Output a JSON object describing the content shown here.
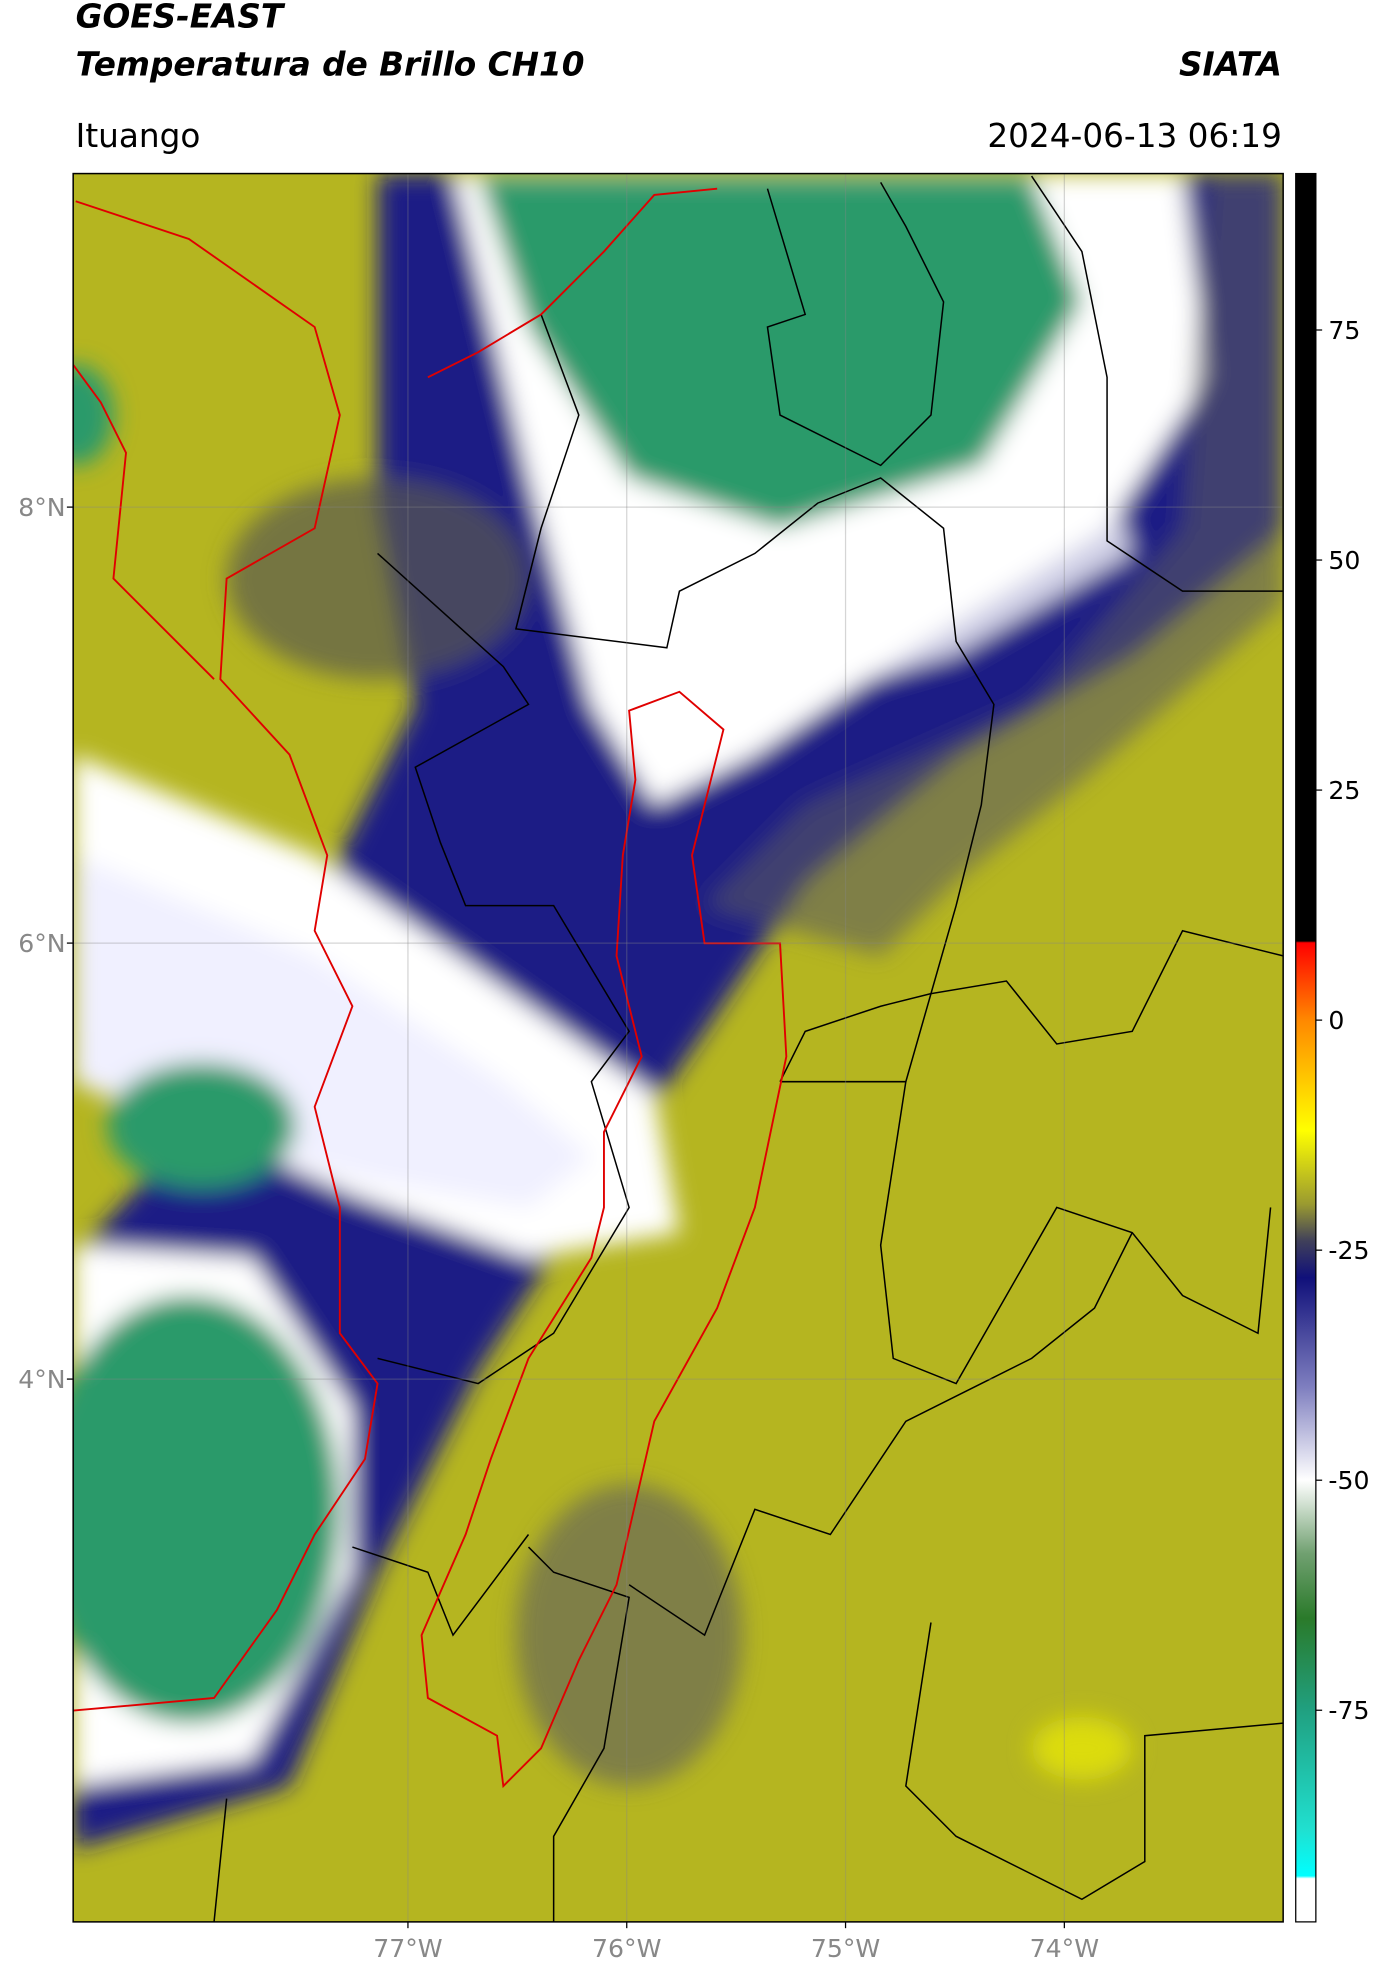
{
  "header": {
    "title": "GOES-EAST",
    "subtitle": "Temperatura de Brillo CH10",
    "source": "SIATA",
    "location": "Ituango",
    "datetime": "2024-06-13 06:19"
  },
  "map": {
    "lonlim": [
      -78.53,
      -73.0
    ],
    "latlim": [
      1.51,
      9.53
    ],
    "xticks": [
      {
        "value": -77,
        "label": "77°W"
      },
      {
        "value": -76,
        "label": "76°W"
      },
      {
        "value": -75,
        "label": "75°W"
      },
      {
        "value": -74,
        "label": "74°W"
      }
    ],
    "yticks": [
      {
        "value": 8,
        "label": "8°N"
      },
      {
        "value": 6,
        "label": "6°N"
      },
      {
        "value": 4,
        "label": "4°N"
      }
    ],
    "grid": true
  },
  "colorbar": {
    "clim": [
      -98,
      92
    ],
    "ticks": [
      75,
      50,
      25,
      0,
      -25,
      -50,
      -75
    ],
    "colormap": [
      {
        "value": 92,
        "color": "#000000"
      },
      {
        "value": 8.6,
        "color": "#000000"
      },
      {
        "value": 8.4,
        "color": "#ff0000"
      },
      {
        "value": 0,
        "color": "#ff8800"
      },
      {
        "value": -12,
        "color": "#ffff00"
      },
      {
        "value": -20,
        "color": "#9a9a30"
      },
      {
        "value": -24,
        "color": "#40405a"
      },
      {
        "value": -28,
        "color": "#10107a"
      },
      {
        "value": -40,
        "color": "#8080c0"
      },
      {
        "value": -50,
        "color": "#ffffff"
      },
      {
        "value": -58,
        "color": "#70a070"
      },
      {
        "value": -65,
        "color": "#2a7a2a"
      },
      {
        "value": -75,
        "color": "#20a080"
      },
      {
        "value": -88,
        "color": "#20e0d0"
      },
      {
        "value": -93,
        "color": "#00ffff"
      },
      {
        "value": -93.3,
        "color": "#ffffff"
      },
      {
        "value": -98,
        "color": "#ffffff"
      }
    ]
  }
}
